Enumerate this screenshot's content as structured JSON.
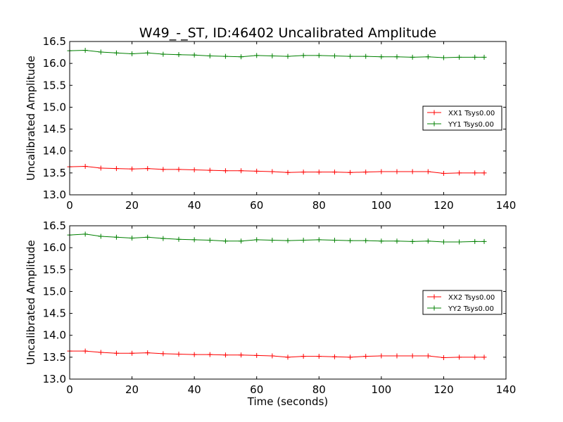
{
  "chart_data": [
    {
      "type": "line",
      "title": "W49_-_ST, ID:46402 Uncalibrated Amplitude",
      "xlabel": "",
      "ylabel": "Uncalibrated Amplitude",
      "xlim": [
        0,
        140
      ],
      "ylim": [
        13.0,
        16.5
      ],
      "xticks": [
        "0",
        "20",
        "40",
        "60",
        "80",
        "100",
        "120",
        "140"
      ],
      "yticks": [
        "13.0",
        "13.5",
        "14.0",
        "14.5",
        "15.0",
        "15.5",
        "16.0",
        "16.5"
      ],
      "grid": false,
      "legend": "center-right",
      "series": [
        {
          "name": "XX1 Tsys0.00",
          "color": "#ff0000",
          "marker": "+",
          "x": [
            0,
            5,
            10,
            15,
            20,
            25,
            30,
            35,
            40,
            45,
            50,
            55,
            60,
            65,
            70,
            75,
            80,
            85,
            90,
            95,
            100,
            105,
            110,
            115,
            120,
            125,
            130,
            133
          ],
          "y": [
            13.64,
            13.65,
            13.61,
            13.6,
            13.59,
            13.6,
            13.58,
            13.58,
            13.57,
            13.56,
            13.55,
            13.55,
            13.54,
            13.53,
            13.51,
            13.52,
            13.52,
            13.52,
            13.51,
            13.52,
            13.53,
            13.53,
            13.53,
            13.53,
            13.49,
            13.5,
            13.5,
            13.5
          ]
        },
        {
          "name": "YY1 Tsys0.00",
          "color": "#008000",
          "marker": "+",
          "x": [
            0,
            5,
            10,
            15,
            20,
            25,
            30,
            35,
            40,
            45,
            50,
            55,
            60,
            65,
            70,
            75,
            80,
            85,
            90,
            95,
            100,
            105,
            110,
            115,
            120,
            125,
            130,
            133
          ],
          "y": [
            16.29,
            16.3,
            16.26,
            16.24,
            16.22,
            16.24,
            16.21,
            16.2,
            16.19,
            16.17,
            16.16,
            16.15,
            16.18,
            16.17,
            16.16,
            16.18,
            16.18,
            16.17,
            16.16,
            16.16,
            16.15,
            16.15,
            16.14,
            16.15,
            16.13,
            16.14,
            16.14,
            16.14
          ]
        }
      ]
    },
    {
      "type": "line",
      "title": "",
      "xlabel": "Time (seconds)",
      "ylabel": "Uncalibrated Amplitude",
      "xlim": [
        0,
        140
      ],
      "ylim": [
        13.0,
        16.5
      ],
      "xticks": [
        "0",
        "20",
        "40",
        "60",
        "80",
        "100",
        "120",
        "140"
      ],
      "yticks": [
        "13.0",
        "13.5",
        "14.0",
        "14.5",
        "15.0",
        "15.5",
        "16.0",
        "16.5"
      ],
      "grid": false,
      "legend": "center-right",
      "series": [
        {
          "name": "XX2 Tsys0.00",
          "color": "#ff0000",
          "marker": "+",
          "x": [
            0,
            5,
            10,
            15,
            20,
            25,
            30,
            35,
            40,
            45,
            50,
            55,
            60,
            65,
            70,
            75,
            80,
            85,
            90,
            95,
            100,
            105,
            110,
            115,
            120,
            125,
            130,
            133
          ],
          "y": [
            13.64,
            13.64,
            13.61,
            13.59,
            13.59,
            13.6,
            13.58,
            13.57,
            13.56,
            13.56,
            13.55,
            13.55,
            13.54,
            13.53,
            13.5,
            13.52,
            13.52,
            13.51,
            13.5,
            13.52,
            13.53,
            13.53,
            13.53,
            13.53,
            13.49,
            13.5,
            13.5,
            13.5
          ]
        },
        {
          "name": "YY2 Tsys0.00",
          "color": "#008000",
          "marker": "+",
          "x": [
            0,
            5,
            10,
            15,
            20,
            25,
            30,
            35,
            40,
            45,
            50,
            55,
            60,
            65,
            70,
            75,
            80,
            85,
            90,
            95,
            100,
            105,
            110,
            115,
            120,
            125,
            130,
            133
          ],
          "y": [
            16.29,
            16.31,
            16.26,
            16.24,
            16.22,
            16.24,
            16.21,
            16.19,
            16.18,
            16.17,
            16.15,
            16.15,
            16.18,
            16.17,
            16.16,
            16.17,
            16.18,
            16.17,
            16.16,
            16.16,
            16.15,
            16.15,
            16.14,
            16.15,
            16.13,
            16.13,
            16.14,
            16.14
          ]
        }
      ]
    }
  ]
}
